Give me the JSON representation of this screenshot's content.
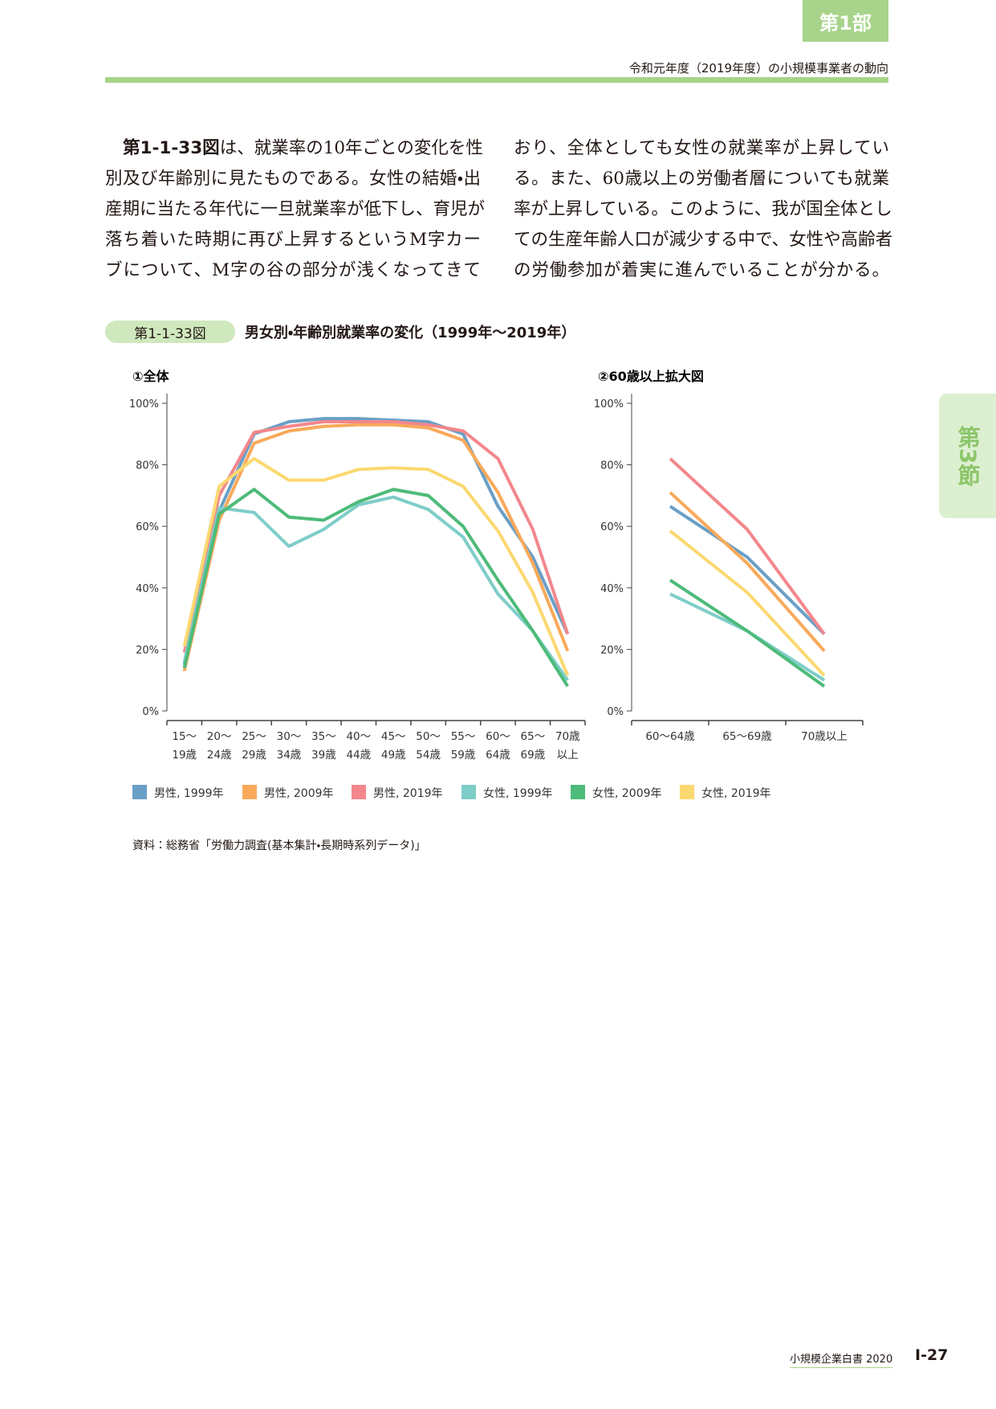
{
  "header": {
    "part_tab": "第1部",
    "running_title": "令和元年度（2019年度）の小規模事業者の動向",
    "section_tab": "第3節"
  },
  "body": {
    "figure_ref": "第1-1-33図",
    "left_lines": [
      "は、就業率の10年ごとの変化を性",
      "別及び年齢別に見たものである。女性の結婚・出",
      "産期に当たる年代に一旦就業率が低下し、育児が",
      "落ち着いた時期に再び上昇するというM字カー",
      "ブについて、M字の谷の部分が浅くなってきて"
    ],
    "right_lines": [
      "おり、全体としても女性の就業率が上昇してい",
      "る。また、60歳以上の労働者層についても就業",
      "率が上昇している。このように、我が国全体とし",
      "ての生産年齢人口が減少する中で、女性や高齢者",
      "の労働参加が着実に進んでいることが分かる。"
    ]
  },
  "figure": {
    "number": "第1-1-33図",
    "title": "男女別・年齢別就業率の変化（1999年～2019年）",
    "source": "資料：総務省「労働力調査(基本集計・長期時系列データ)」"
  },
  "chart_data": [
    {
      "type": "line",
      "title": "①全体",
      "categories": [
        "15～19歳",
        "20～24歳",
        "25～29歳",
        "30～34歳",
        "35～39歳",
        "40～44歳",
        "45～49歳",
        "50～54歳",
        "55～59歳",
        "60～64歳",
        "65～69歳",
        "70歳以上"
      ],
      "ylim": [
        0,
        100
      ],
      "yticks": [
        {
          "value": 0,
          "label": "0%"
        },
        {
          "value": 20,
          "label": "20%"
        },
        {
          "value": 40,
          "label": "40%"
        },
        {
          "value": 60,
          "label": "60%"
        },
        {
          "value": 80,
          "label": "80%"
        },
        {
          "value": 100,
          "label": "100%"
        }
      ],
      "series": [
        {
          "name": "男性, 1999年",
          "color": "#6a9fc6",
          "values": [
            15,
            65,
            90,
            94,
            95,
            95,
            94.5,
            94,
            90,
            66.5,
            50,
            25
          ]
        },
        {
          "name": "男性, 2009年",
          "color": "#f9a95a",
          "values": [
            13,
            62,
            87,
            91,
            92.5,
            93,
            93,
            92,
            88,
            71,
            48,
            19.5
          ]
        },
        {
          "name": "男性, 2019年",
          "color": "#f3878b",
          "values": [
            19,
            70,
            90.5,
            92.5,
            94,
            94,
            94,
            93,
            91,
            82,
            59,
            25
          ]
        },
        {
          "name": "女性, 1999年",
          "color": "#7ecdc8",
          "values": [
            16,
            66,
            64.5,
            53.5,
            59,
            67,
            69.5,
            65.5,
            56.5,
            38,
            26,
            10
          ]
        },
        {
          "name": "女性, 2009年",
          "color": "#4dbb79",
          "values": [
            14,
            64,
            72,
            63,
            62,
            68,
            72,
            70,
            60,
            42.5,
            26,
            8
          ]
        },
        {
          "name": "女性, 2019年",
          "color": "#fbd870",
          "values": [
            21,
            73,
            82,
            75,
            75,
            78.5,
            79,
            78.5,
            73,
            58.5,
            38.5,
            11.5
          ]
        }
      ]
    },
    {
      "type": "line",
      "title": "②60歳以上拡大図",
      "categories": [
        "60～64歳",
        "65～69歳",
        "70歳以上"
      ],
      "ylim": [
        0,
        100
      ],
      "yticks": [
        {
          "value": 0,
          "label": "0%"
        },
        {
          "value": 20,
          "label": "20%"
        },
        {
          "value": 40,
          "label": "40%"
        },
        {
          "value": 60,
          "label": "60%"
        },
        {
          "value": 80,
          "label": "80%"
        },
        {
          "value": 100,
          "label": "100%"
        }
      ],
      "series": [
        {
          "color": "#6a9fc6",
          "values": [
            66.5,
            50,
            25
          ]
        },
        {
          "color": "#f9a95a",
          "values": [
            71,
            48,
            19.5
          ]
        },
        {
          "color": "#f3878b",
          "values": [
            82,
            59,
            25
          ]
        },
        {
          "color": "#7ecdc8",
          "values": [
            38,
            26,
            10
          ]
        },
        {
          "color": "#4dbb79",
          "values": [
            42.5,
            26,
            8
          ]
        },
        {
          "color": "#fbd870",
          "values": [
            58.5,
            38.5,
            11.5
          ]
        }
      ]
    }
  ],
  "footer": {
    "book": "小規模企業白書 2020",
    "page": "I-27"
  }
}
